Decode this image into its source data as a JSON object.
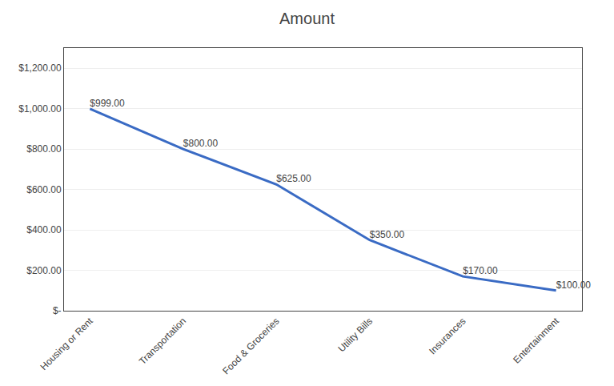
{
  "chart_data": {
    "type": "line",
    "title": "Amount",
    "categories": [
      "Housing or Rent",
      "Transportation",
      "Food & Groceries",
      "Utility Bills",
      "Insurances",
      "Entertainment"
    ],
    "values": [
      999,
      800,
      625,
      350,
      170,
      100
    ],
    "value_labels": [
      "$999.00",
      "$800.00",
      "$625.00",
      "$350.00",
      "$170.00",
      "$100.00"
    ],
    "data_labels": true,
    "color": "#3a6bc4",
    "ylim": [
      0,
      1300
    ],
    "yticks": [
      {
        "value": 0,
        "label": "$-"
      },
      {
        "value": 200,
        "label": "$200.00"
      },
      {
        "value": 400,
        "label": "$400.00"
      },
      {
        "value": 600,
        "label": "$600.00"
      },
      {
        "value": 800,
        "label": "$800.00"
      },
      {
        "value": 1000,
        "label": "$1,000.00"
      },
      {
        "value": 1200,
        "label": "$1,200.00"
      }
    ],
    "grid": true
  }
}
